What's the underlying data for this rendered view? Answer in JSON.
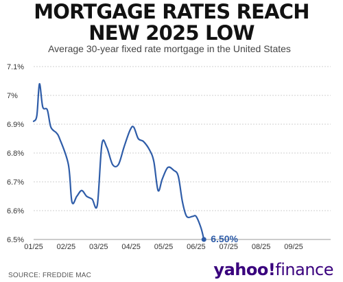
{
  "title": "MORTGAGE RATES REACH NEW 2025 LOW",
  "subtitle": "Average 30-year fixed rate mortgage in the United States",
  "source": "SOURCE: FREDDIE MAC",
  "brand": {
    "part1": "yahoo!",
    "part2": "finance"
  },
  "colors": {
    "line": "#2e5ca8",
    "label": "#2e5ca8",
    "grid": "#cfcfcf",
    "text": "#333333"
  },
  "chart_data": {
    "type": "line",
    "title": "MORTGAGE RATES REACH NEW 2025 LOW",
    "subtitle": "Average 30-year fixed rate mortgage in the United States",
    "xlabel": "",
    "ylabel": "",
    "ylim": [
      6.5,
      7.1
    ],
    "yticks": [
      {
        "value": 7.1,
        "label": "7.1%"
      },
      {
        "value": 7.0,
        "label": "7%"
      },
      {
        "value": 6.9,
        "label": "6.9%"
      },
      {
        "value": 6.8,
        "label": "6.8%"
      },
      {
        "value": 6.7,
        "label": "6.7%"
      },
      {
        "value": 6.6,
        "label": "6.6%"
      },
      {
        "value": 6.5,
        "label": "6.5%"
      }
    ],
    "xticks": [
      "01/25",
      "02/25",
      "03/25",
      "04/25",
      "05/25",
      "06/25",
      "07/25",
      "08/25",
      "09/25"
    ],
    "grid": true,
    "end_label": "6.50%",
    "series": [
      {
        "points": [
          [
            0.0,
            6.91
          ],
          [
            0.1,
            6.93
          ],
          [
            0.18,
            7.04
          ],
          [
            0.28,
            6.96
          ],
          [
            0.42,
            6.95
          ],
          [
            0.53,
            6.89
          ],
          [
            0.7,
            6.87
          ],
          [
            0.8,
            6.85
          ],
          [
            1.07,
            6.76
          ],
          [
            1.18,
            6.63
          ],
          [
            1.33,
            6.65
          ],
          [
            1.48,
            6.67
          ],
          [
            1.63,
            6.65
          ],
          [
            1.8,
            6.64
          ],
          [
            1.96,
            6.62
          ],
          [
            2.1,
            6.83
          ],
          [
            2.25,
            6.82
          ],
          [
            2.43,
            6.76
          ],
          [
            2.61,
            6.76
          ],
          [
            2.78,
            6.82
          ],
          [
            2.97,
            6.88
          ],
          [
            3.08,
            6.89
          ],
          [
            3.22,
            6.85
          ],
          [
            3.38,
            6.84
          ],
          [
            3.57,
            6.81
          ],
          [
            3.7,
            6.77
          ],
          [
            3.83,
            6.67
          ],
          [
            3.96,
            6.71
          ],
          [
            4.13,
            6.75
          ],
          [
            4.31,
            6.74
          ],
          [
            4.45,
            6.72
          ],
          [
            4.58,
            6.63
          ],
          [
            4.71,
            6.58
          ],
          [
            4.89,
            6.58
          ],
          [
            5.0,
            6.58
          ],
          [
            5.15,
            6.54
          ],
          [
            5.24,
            6.5
          ]
        ]
      }
    ]
  }
}
